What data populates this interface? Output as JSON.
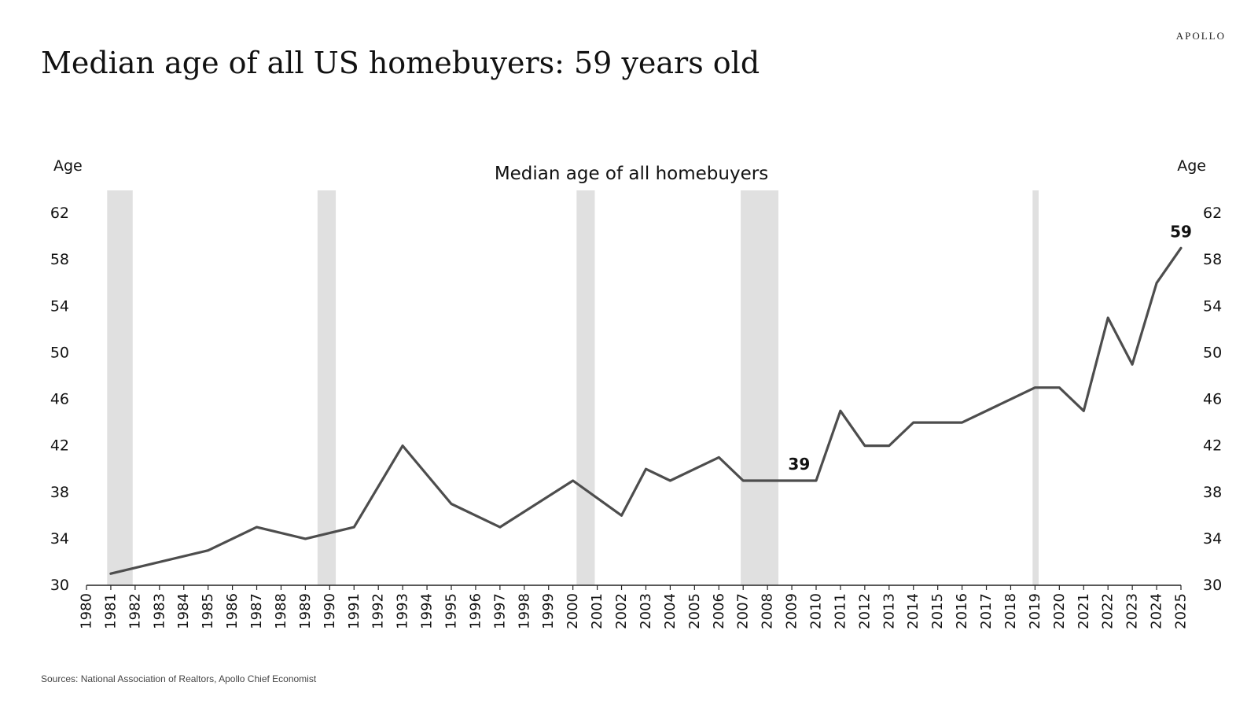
{
  "header": {
    "brand": "APOLLO",
    "title": "Median age of all US homebuyers: 59 years old"
  },
  "footer": {
    "sources": "Sources: National Association of Realtors, Apollo Chief Economist"
  },
  "chart_data": {
    "type": "line",
    "title": "Median age of all homebuyers",
    "ylabel_left": "Age",
    "ylabel_right": "Age",
    "xlabel": "",
    "ylim": [
      30,
      62
    ],
    "yticks": [
      30,
      34,
      38,
      42,
      46,
      50,
      54,
      58,
      62
    ],
    "xlim": [
      1980,
      2025
    ],
    "xticks": [
      1980,
      1981,
      1982,
      1983,
      1984,
      1985,
      1986,
      1987,
      1988,
      1989,
      1990,
      1991,
      1992,
      1993,
      1994,
      1995,
      1996,
      1997,
      1998,
      1999,
      2000,
      2001,
      2002,
      2003,
      2004,
      2005,
      2006,
      2007,
      2008,
      2009,
      2010,
      2011,
      2012,
      2013,
      2014,
      2015,
      2016,
      2017,
      2018,
      2019,
      2020,
      2021,
      2022,
      2023,
      2024,
      2025
    ],
    "grid": false,
    "legend": "none",
    "line_color": "#4d4d4d",
    "shade_color": "#e0e0e0",
    "recessions": [
      {
        "start": 1980.85,
        "end": 1981.9
      },
      {
        "start": 1989.5,
        "end": 1990.25
      },
      {
        "start": 2000.15,
        "end": 2000.9
      },
      {
        "start": 2006.9,
        "end": 2008.45
      },
      {
        "start": 2018.9,
        "end": 2019.15
      }
    ],
    "x": [
      1981,
      1985,
      1987,
      1989,
      1991,
      1993,
      1995,
      1997,
      2000,
      2002,
      2003,
      2004,
      2006,
      2007,
      2010,
      2011,
      2012,
      2013,
      2014,
      2016,
      2019,
      2020,
      2021,
      2022,
      2023,
      2024,
      2025
    ],
    "y": [
      31,
      33,
      35,
      34,
      35,
      42,
      37,
      35,
      39,
      36,
      40,
      39,
      41,
      39,
      39,
      45,
      42,
      42,
      44,
      44,
      47,
      47,
      45,
      53,
      49,
      56,
      59
    ],
    "annotations": [
      {
        "text": "39",
        "x": 2009.3,
        "y": 39
      },
      {
        "text": "59",
        "x": 2025,
        "y": 59
      }
    ]
  }
}
